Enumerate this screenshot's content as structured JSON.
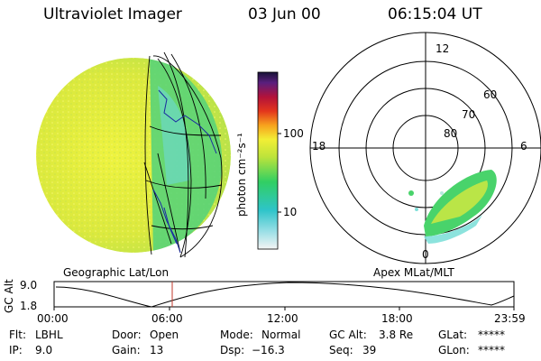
{
  "header": {
    "title": "Ultraviolet Imager",
    "date": "03 Jun 00",
    "time": "06:15:04 UT"
  },
  "colorbar": {
    "unit_label": "photon cm⁻²s⁻¹",
    "ticks": [
      "100",
      "10"
    ]
  },
  "polar_plot": {
    "mlt_labels": [
      "12",
      "18",
      "6",
      "0"
    ],
    "lat_labels": [
      "60",
      "70",
      "80"
    ]
  },
  "panel_labels": {
    "left": "Geographic Lat/Lon",
    "right": "Apex MLat/MLT"
  },
  "altitude_strip": {
    "axis_title": "GC Alt",
    "y_ticks": [
      "9.0",
      "1.8"
    ],
    "x_ticks": [
      "00:00",
      "06:00",
      "12:00",
      "18:00",
      "23:59"
    ]
  },
  "info": {
    "flt_label": "Flt:",
    "flt_value": "LBHL",
    "ip_label": "IP:",
    "ip_value": "9.0",
    "door_label": "Door:",
    "door_value": "Open",
    "gain_label": "Gain:",
    "gain_value": "13",
    "mode_label": "Mode:",
    "mode_value": "Normal",
    "dsp_label": "Dsp:",
    "dsp_value": "−16.3",
    "gcalt_label": "GC Alt:",
    "gcalt_value": "3.8 Re",
    "seq_label": "Seq:",
    "seq_value": "39",
    "glat_label": "GLat:",
    "glat_value": "*****",
    "glon_label": "GLon:",
    "glon_value": "*****"
  },
  "colors": {
    "earth_fill": "#e8ef3c",
    "aurora_fill": "#49d36b",
    "marker_line": "#c0392b"
  }
}
